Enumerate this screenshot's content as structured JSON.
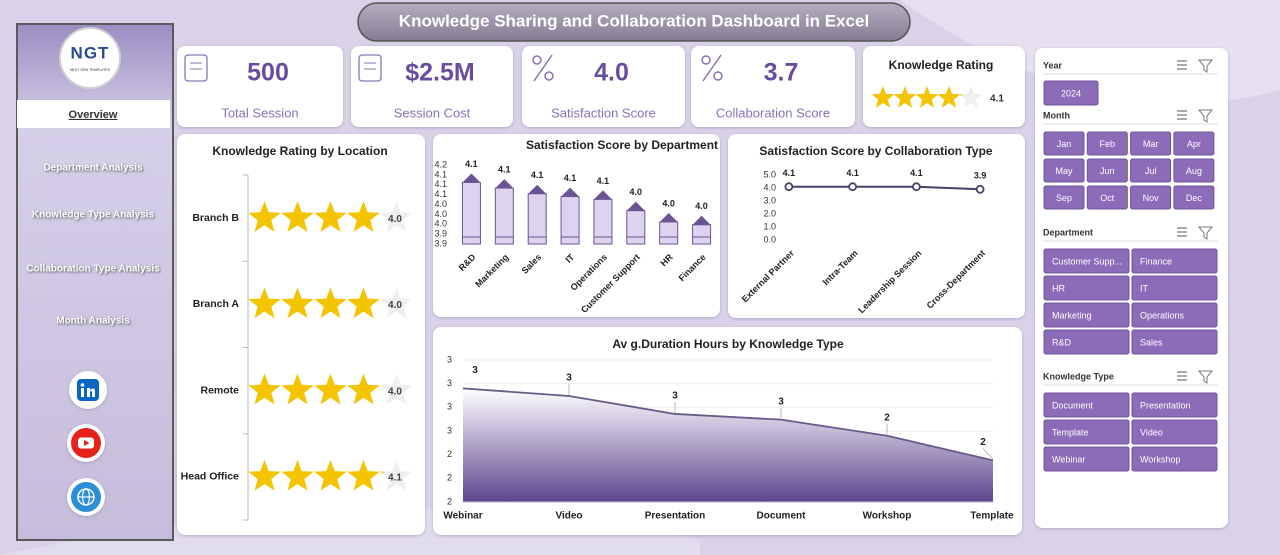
{
  "title": "Knowledge Sharing and Collaboration Dashboard in Excel",
  "sidebar": {
    "logo": "NGT",
    "logo_tagline": "NEXT GEN TEMPLATES",
    "menu": [
      "Overview",
      "Department Analysis",
      "Knowledge Type Analysis",
      "Collaboration Type Analysis",
      "Month Analysis"
    ]
  },
  "kpis": [
    {
      "value": "500",
      "label": "Total Session"
    },
    {
      "value": "$2.5M",
      "label": "Session Cost"
    },
    {
      "value": "4.0",
      "label": "Satisfaction Score"
    },
    {
      "value": "3.7",
      "label": "Collaboration Score"
    }
  ],
  "rating_card": {
    "title": "Knowledge Rating",
    "value": 4.1,
    "xlim": [
      0,
      5
    ],
    "color": "#f5c400"
  },
  "slicers": [
    {
      "title": "Year",
      "items": [
        "2024"
      ]
    },
    {
      "title": "Month",
      "items": [
        "Jan",
        "Feb",
        "Mar",
        "Apr",
        "May",
        "Jun",
        "Jul",
        "Aug",
        "Sep",
        "Oct",
        "Nov",
        "Dec"
      ]
    },
    {
      "title": "Department",
      "items": [
        "Customer Supp...",
        "Finance",
        "HR",
        "IT",
        "Marketing",
        "Operations",
        "R&D",
        "Sales"
      ]
    },
    {
      "title": "Knowledge Type",
      "items": [
        "Document",
        "Presentation",
        "Template",
        "Video",
        "Webinar",
        "Workshop"
      ]
    }
  ],
  "chart_data": [
    {
      "type": "star-rating",
      "title": "Knowledge Rating by Location",
      "categories": [
        "Branch B",
        "Branch A",
        "Remote",
        "Head Office"
      ],
      "values": [
        4,
        4,
        4,
        4.1
      ],
      "value_labels": [
        "4.0",
        "4.0",
        "4.0",
        "4.1"
      ],
      "xlim": [
        0,
        5
      ],
      "color": "#f5c400"
    },
    {
      "type": "bar",
      "title": "Satisfaction Score by Department",
      "categories": [
        "R&D",
        "Marketing",
        "Sales",
        "IT",
        "Operations",
        "Customer Support",
        "HR",
        "Finance"
      ],
      "values": [
        4.14,
        4.12,
        4.1,
        4.09,
        4.08,
        4.04,
        4.0,
        3.99
      ],
      "value_labels": [
        "4.1",
        "4.1",
        "4.1",
        "4.1",
        "4.1",
        "4.0",
        "4.0",
        "4.0"
      ],
      "ylim": [
        3.89,
        4.17
      ],
      "yticks": [
        {
          "value": 3.89,
          "label": "3.9"
        },
        {
          "value": 3.925,
          "label": "3.9"
        },
        {
          "value": 3.96,
          "label": "4.0"
        },
        {
          "value": 3.995,
          "label": "4.0"
        },
        {
          "value": 4.03,
          "label": "4.0"
        },
        {
          "value": 4.065,
          "label": "4.1"
        },
        4.1,
        {
          "value": 4.135,
          "label": "4.1"
        },
        {
          "value": 4.17,
          "label": "4.2"
        }
      ],
      "color": "#ddd3ee"
    },
    {
      "type": "line",
      "title": "Satisfaction Score by Collaboration Type",
      "categories": [
        "External Partner",
        "Intra-Team",
        "Leadership Session",
        "Cross-Department"
      ],
      "values": [
        4.1,
        4.1,
        4.1,
        3.9
      ],
      "ylim": [
        0,
        5
      ],
      "yticks": [
        {
          "value": 0,
          "label": "0.0"
        },
        {
          "value": 1,
          "label": "1.0"
        },
        {
          "value": 2,
          "label": "2.0"
        },
        {
          "value": 3,
          "label": "3.0"
        },
        {
          "value": 4,
          "label": "4.0"
        },
        {
          "value": 5,
          "label": "5.0"
        }
      ],
      "color": "#4b3f6b"
    },
    {
      "type": "area",
      "title": "Av g.Duration Hours by Knowledge Type",
      "categories": [
        "Webinar",
        "Video",
        "Presentation",
        "Document",
        "Workshop",
        "Template"
      ],
      "values": [
        2.95,
        2.87,
        2.68,
        2.62,
        2.45,
        2.19
      ],
      "value_labels": [
        "3",
        "3",
        "3",
        "3",
        "2",
        "2"
      ],
      "ylim": [
        1.75,
        3.25
      ],
      "yticks": [
        {
          "value": 1.75,
          "label": "2"
        },
        2,
        {
          "value": 2.25,
          "label": "2"
        },
        {
          "value": 2.5,
          "label": "3"
        },
        {
          "value": 2.75,
          "label": "3"
        },
        3,
        {
          "value": 3.25,
          "label": "3"
        }
      ],
      "grid": true,
      "color": "#5e4590"
    }
  ]
}
